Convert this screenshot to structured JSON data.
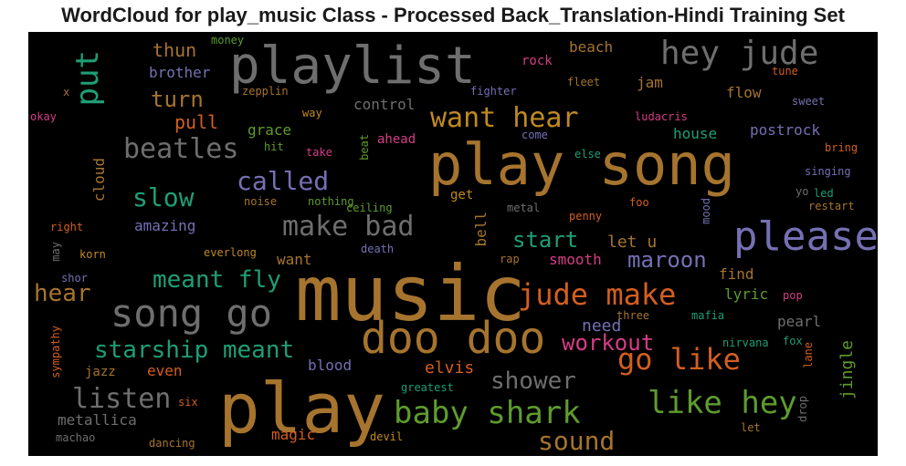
{
  "title": "WordCloud for play_music Class - Processed Back_Translation-Hindi Training Set",
  "palette": {
    "background": "#000000",
    "orange": "#D35F1F",
    "gold": "#C08A20",
    "brown": "#A6742E",
    "gray": "#6E6E6E",
    "green": "#5E9C2E",
    "teal": "#1E9E77",
    "purple": "#7570B3",
    "pink": "#D63C87"
  },
  "words": [
    {
      "text": "music",
      "color": "#A6742E",
      "weight": 100
    },
    {
      "text": "play song",
      "color": "#A6742E",
      "weight": 95
    },
    {
      "text": "play",
      "color": "#A6742E",
      "weight": 92
    },
    {
      "text": "playlist",
      "color": "#6E6E6E",
      "weight": 80
    },
    {
      "text": "doo doo",
      "color": "#A6742E",
      "weight": 72
    },
    {
      "text": "please",
      "color": "#7570B3",
      "weight": 68
    },
    {
      "text": "song go",
      "color": "#6E6E6E",
      "weight": 64
    },
    {
      "text": "hey jude",
      "color": "#6E6E6E",
      "weight": 52
    },
    {
      "text": "baby shark",
      "color": "#5E9C2E",
      "weight": 48
    },
    {
      "text": "like hey",
      "color": "#5E9C2E",
      "weight": 48
    },
    {
      "text": "go like",
      "color": "#D35F1F",
      "weight": 46
    },
    {
      "text": "jude make",
      "color": "#D35F1F",
      "weight": 44
    },
    {
      "text": "want hear",
      "color": "#C08A20",
      "weight": 44
    },
    {
      "text": "beatles",
      "color": "#6E6E6E",
      "weight": 44
    },
    {
      "text": "make bad",
      "color": "#6E6E6E",
      "weight": 44
    },
    {
      "text": "listen",
      "color": "#6E6E6E",
      "weight": 44
    },
    {
      "text": "put",
      "color": "#1E9E77",
      "weight": 42
    },
    {
      "text": "slow",
      "color": "#1E9E77",
      "weight": 40
    },
    {
      "text": "called",
      "color": "#7570B3",
      "weight": 38
    },
    {
      "text": "sound",
      "color": "#A6742E",
      "weight": 36
    },
    {
      "text": "starship meant",
      "color": "#1E9E77",
      "weight": 34
    },
    {
      "text": "meant fly",
      "color": "#1E9E77",
      "weight": 34
    },
    {
      "text": "hear",
      "color": "#A6742E",
      "weight": 36
    },
    {
      "text": "shower",
      "color": "#6E6E6E",
      "weight": 34
    },
    {
      "text": "workout",
      "color": "#D63C87",
      "weight": 32
    },
    {
      "text": "start",
      "color": "#1E9E77",
      "weight": 32
    },
    {
      "text": "maroon",
      "color": "#7570B3",
      "weight": 32
    },
    {
      "text": "turn",
      "color": "#A6742E",
      "weight": 30
    },
    {
      "text": "elvis",
      "color": "#D35F1F",
      "weight": 26
    },
    {
      "text": "let u",
      "color": "#A6742E",
      "weight": 26
    },
    {
      "text": "jingle",
      "color": "#5E9C2E",
      "weight": 26
    },
    {
      "text": "thun",
      "color": "#A6742E",
      "weight": 24
    },
    {
      "text": "pull",
      "color": "#D35F1F",
      "weight": 24
    },
    {
      "text": "need",
      "color": "#7570B3",
      "weight": 24
    },
    {
      "text": "metallica",
      "color": "#6E6E6E",
      "weight": 22
    },
    {
      "text": "amazing",
      "color": "#7570B3",
      "weight": 20
    },
    {
      "text": "grace",
      "color": "#5E9C2E",
      "weight": 20
    },
    {
      "text": "control",
      "color": "#6E6E6E",
      "weight": 20
    },
    {
      "text": "brother",
      "color": "#7570B3",
      "weight": 20
    },
    {
      "text": "smooth",
      "color": "#D63C87",
      "weight": 20
    },
    {
      "text": "house",
      "color": "#1E9E77",
      "weight": 20
    },
    {
      "text": "postrock",
      "color": "#7570B3",
      "weight": 20
    },
    {
      "text": "lyric",
      "color": "#5E9C2E",
      "weight": 20
    },
    {
      "text": "find",
      "color": "#A6742E",
      "weight": 20
    },
    {
      "text": "pearl",
      "color": "#6E6E6E",
      "weight": 20
    },
    {
      "text": "blood",
      "color": "#7570B3",
      "weight": 20
    },
    {
      "text": "even",
      "color": "#D35F1F",
      "weight": 20
    },
    {
      "text": "jazz",
      "color": "#A6742E",
      "weight": 18
    },
    {
      "text": "want",
      "color": "#A6742E",
      "weight": 20
    },
    {
      "text": "cloud",
      "color": "#A6742E",
      "weight": 20
    },
    {
      "text": "bell",
      "color": "#A6742E",
      "weight": 20
    },
    {
      "text": "ahead",
      "color": "#D63C87",
      "weight": 18
    },
    {
      "text": "get",
      "color": "#C08A20",
      "weight": 18
    },
    {
      "text": "beach",
      "color": "#A6742E",
      "weight": 18
    },
    {
      "text": "rock",
      "color": "#D63C87",
      "weight": 18
    },
    {
      "text": "jam",
      "color": "#A6742E",
      "weight": 18
    },
    {
      "text": "flow",
      "color": "#A6742E",
      "weight": 18
    },
    {
      "text": "magic",
      "color": "#D35F1F",
      "weight": 18
    },
    {
      "text": "zepplin",
      "color": "#A6742E",
      "weight": 14
    },
    {
      "text": "money",
      "color": "#5E9C2E",
      "weight": 14
    },
    {
      "text": "x",
      "color": "#A6742E",
      "weight": 12
    },
    {
      "text": "okay",
      "color": "#D63C87",
      "weight": 14
    },
    {
      "text": "way",
      "color": "#C08A20",
      "weight": 14
    },
    {
      "text": "hit",
      "color": "#5E9C2E",
      "weight": 14
    },
    {
      "text": "take",
      "color": "#D63C87",
      "weight": 14
    },
    {
      "text": "beat",
      "color": "#5E9C2E",
      "weight": 14
    },
    {
      "text": "fighter",
      "color": "#7570B3",
      "weight": 14
    },
    {
      "text": "fleet",
      "color": "#A6742E",
      "weight": 14
    },
    {
      "text": "tune",
      "color": "#D35F1F",
      "weight": 14
    },
    {
      "text": "sweet",
      "color": "#7570B3",
      "weight": 14
    },
    {
      "text": "ludacris",
      "color": "#D63C87",
      "weight": 14
    },
    {
      "text": "come",
      "color": "#7570B3",
      "weight": 14
    },
    {
      "text": "else",
      "color": "#1E9E77",
      "weight": 14
    },
    {
      "text": "bring",
      "color": "#D35F1F",
      "weight": 14
    },
    {
      "text": "singing",
      "color": "#7570B3",
      "weight": 14
    },
    {
      "text": "yo",
      "color": "#6E6E6E",
      "weight": 14
    },
    {
      "text": "led",
      "color": "#1E9E77",
      "weight": 14
    },
    {
      "text": "restart",
      "color": "#A6742E",
      "weight": 14
    },
    {
      "text": "ceiling",
      "color": "#5E9C2E",
      "weight": 14
    },
    {
      "text": "noise",
      "color": "#A6742E",
      "weight": 14
    },
    {
      "text": "nothing",
      "color": "#5E9C2E",
      "weight": 14
    },
    {
      "text": "metal",
      "color": "#6E6E6E",
      "weight": 14
    },
    {
      "text": "penny",
      "color": "#D35F1F",
      "weight": 14
    },
    {
      "text": "foo",
      "color": "#D35F1F",
      "weight": 14
    },
    {
      "text": "mood",
      "color": "#7570B3",
      "weight": 14
    },
    {
      "text": "right",
      "color": "#D35F1F",
      "weight": 14
    },
    {
      "text": "may",
      "color": "#6E6E6E",
      "weight": 14
    },
    {
      "text": "korn",
      "color": "#C08A20",
      "weight": 14
    },
    {
      "text": "everlong",
      "color": "#C08A20",
      "weight": 14
    },
    {
      "text": "death",
      "color": "#7570B3",
      "weight": 14
    },
    {
      "text": "rap",
      "color": "#A6742E",
      "weight": 14
    },
    {
      "text": "shor",
      "color": "#7570B3",
      "weight": 14
    },
    {
      "text": "pop",
      "color": "#D63C87",
      "weight": 14
    },
    {
      "text": "three",
      "color": "#A6742E",
      "weight": 14
    },
    {
      "text": "mafia",
      "color": "#1E9E77",
      "weight": 14
    },
    {
      "text": "nirvana",
      "color": "#1E9E77",
      "weight": 14
    },
    {
      "text": "fox",
      "color": "#1E9E77",
      "weight": 14
    },
    {
      "text": "lane",
      "color": "#D35F1F",
      "weight": 14
    },
    {
      "text": "sympathy",
      "color": "#D35F1F",
      "weight": 14
    },
    {
      "text": "six",
      "color": "#D35F1F",
      "weight": 14
    },
    {
      "text": "greatest",
      "color": "#1E9E77",
      "weight": 14
    },
    {
      "text": "drop",
      "color": "#6E6E6E",
      "weight": 14
    },
    {
      "text": "let",
      "color": "#A6742E",
      "weight": 14
    },
    {
      "text": "machao",
      "color": "#6E6E6E",
      "weight": 14
    },
    {
      "text": "dancing",
      "color": "#A6742E",
      "weight": 14
    },
    {
      "text": "devil",
      "color": "#C08A20",
      "weight": 14
    }
  ]
}
